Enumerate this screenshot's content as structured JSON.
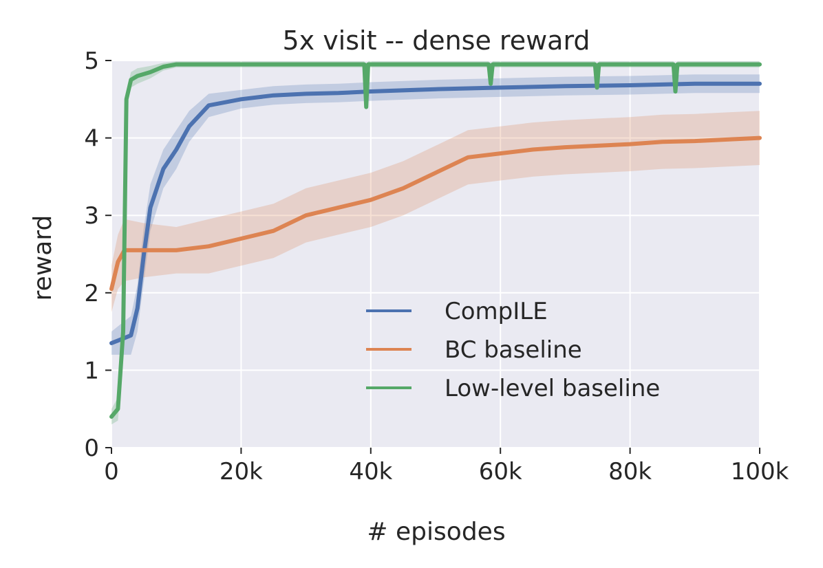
{
  "chart_data": {
    "type": "line",
    "title": "5x visit -- dense reward",
    "xlabel": "# episodes",
    "ylabel": "reward",
    "xlim": [
      0,
      100000
    ],
    "ylim": [
      0,
      5
    ],
    "x_ticks": [
      0,
      20000,
      40000,
      60000,
      80000,
      100000
    ],
    "x_tick_labels": [
      "0",
      "20k",
      "40k",
      "60k",
      "80k",
      "100k"
    ],
    "y_ticks": [
      0,
      1,
      2,
      3,
      4,
      5
    ],
    "y_tick_labels": [
      "0",
      "1",
      "2",
      "3",
      "4",
      "5"
    ],
    "grid": true,
    "legend_position": "lower-right",
    "series": [
      {
        "name": "CompILE",
        "color": "#4c72b0",
        "x": [
          0,
          1500,
          3000,
          4000,
          5000,
          6000,
          8000,
          10000,
          12000,
          15000,
          20000,
          25000,
          30000,
          35000,
          40000,
          50000,
          60000,
          70000,
          80000,
          90000,
          100000
        ],
        "y": [
          1.35,
          1.4,
          1.45,
          1.8,
          2.5,
          3.1,
          3.6,
          3.85,
          4.15,
          4.42,
          4.5,
          4.55,
          4.57,
          4.58,
          4.6,
          4.63,
          4.65,
          4.67,
          4.68,
          4.7,
          4.7
        ],
        "band": [
          0.15,
          0.2,
          0.25,
          0.3,
          0.35,
          0.3,
          0.25,
          0.25,
          0.2,
          0.15,
          0.12,
          0.12,
          0.12,
          0.12,
          0.12,
          0.12,
          0.12,
          0.12,
          0.12,
          0.12,
          0.12
        ]
      },
      {
        "name": "BC baseline",
        "color": "#dd8452",
        "x": [
          0,
          1000,
          2000,
          5000,
          10000,
          15000,
          20000,
          25000,
          30000,
          35000,
          40000,
          45000,
          50000,
          55000,
          60000,
          65000,
          70000,
          75000,
          80000,
          85000,
          90000,
          95000,
          100000
        ],
        "y": [
          2.05,
          2.4,
          2.55,
          2.55,
          2.55,
          2.6,
          2.7,
          2.8,
          3.0,
          3.1,
          3.2,
          3.35,
          3.55,
          3.75,
          3.8,
          3.85,
          3.88,
          3.9,
          3.92,
          3.95,
          3.96,
          3.98,
          4.0
        ],
        "band": [
          0.3,
          0.35,
          0.4,
          0.35,
          0.3,
          0.35,
          0.35,
          0.35,
          0.35,
          0.35,
          0.35,
          0.35,
          0.35,
          0.35,
          0.35,
          0.35,
          0.35,
          0.35,
          0.35,
          0.35,
          0.35,
          0.35,
          0.35
        ]
      },
      {
        "name": "Low-level baseline",
        "color": "#55a868",
        "x": [
          0,
          1000,
          1800,
          2300,
          3000,
          4000,
          6000,
          8000,
          10000,
          15000,
          20000,
          30000,
          39000,
          39300,
          39600,
          40000,
          50000,
          58200,
          58500,
          58800,
          60000,
          74600,
          74900,
          75200,
          86700,
          87000,
          87300,
          100000
        ],
        "y": [
          0.4,
          0.5,
          1.5,
          4.5,
          4.75,
          4.8,
          4.85,
          4.92,
          4.95,
          4.95,
          4.95,
          4.95,
          4.95,
          4.4,
          4.95,
          4.95,
          4.95,
          4.95,
          4.7,
          4.95,
          4.95,
          4.95,
          4.65,
          4.95,
          4.95,
          4.6,
          4.95,
          4.95
        ],
        "band": [
          0.1,
          0.15,
          0.2,
          0.1,
          0.1,
          0.1,
          0.08,
          0.05,
          0.04,
          0.04,
          0.04,
          0.04,
          0.04,
          0.04,
          0.04,
          0.04,
          0.04,
          0.04,
          0.04,
          0.04,
          0.04,
          0.04,
          0.04,
          0.04,
          0.04,
          0.04,
          0.04,
          0.04
        ]
      }
    ]
  },
  "colors": {
    "plot_background": "#eaeaf2",
    "grid": "#ffffff",
    "text": "#262626"
  }
}
